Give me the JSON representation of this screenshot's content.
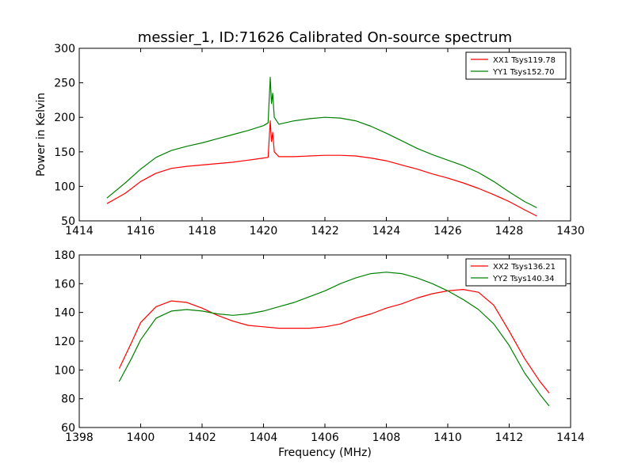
{
  "title": "messier_1, ID:71626 Calibrated On-source spectrum",
  "chart_data": [
    {
      "type": "line",
      "title": "messier_1, ID:71626 Calibrated On-source spectrum",
      "xlabel": "",
      "ylabel": "Power in Kelvin",
      "xlim": [
        1414,
        1430
      ],
      "ylim": [
        50,
        300
      ],
      "xticks": [
        "1414",
        "1416",
        "1418",
        "1420",
        "1422",
        "1424",
        "1426",
        "1428",
        "1430"
      ],
      "yticks": [
        "50",
        "100",
        "150",
        "200",
        "250",
        "300"
      ],
      "grid": false,
      "legend_position": "top-right",
      "series": [
        {
          "name": "XX1 Tsys119.78",
          "color": "#ff0000",
          "x": [
            1414.9,
            1415.5,
            1416,
            1416.5,
            1417,
            1417.5,
            1418,
            1418.5,
            1419,
            1419.5,
            1420,
            1420.15,
            1420.22,
            1420.26,
            1420.3,
            1420.35,
            1420.5,
            1421,
            1421.5,
            1422,
            1422.5,
            1423,
            1423.5,
            1424,
            1424.5,
            1425,
            1425.5,
            1426,
            1426.5,
            1427,
            1427.5,
            1428,
            1428.5,
            1428.9
          ],
          "y": [
            75,
            90,
            107,
            119,
            126,
            129,
            131,
            133,
            135,
            138,
            141,
            142,
            195,
            165,
            178,
            150,
            143,
            143,
            144,
            145,
            145,
            144,
            141,
            137,
            131,
            125,
            118,
            112,
            105,
            97,
            88,
            78,
            66,
            57
          ]
        },
        {
          "name": "YY1 Tsys152.70",
          "color": "#008000",
          "x": [
            1414.9,
            1415.5,
            1416,
            1416.5,
            1417,
            1417.5,
            1418,
            1418.5,
            1419,
            1419.5,
            1420,
            1420.15,
            1420.22,
            1420.26,
            1420.3,
            1420.35,
            1420.5,
            1421,
            1421.5,
            1422,
            1422.5,
            1423,
            1423.5,
            1424,
            1424.5,
            1425,
            1425.5,
            1426,
            1426.5,
            1427,
            1427.5,
            1428,
            1428.5,
            1428.9
          ],
          "y": [
            83,
            105,
            125,
            142,
            152,
            158,
            163,
            169,
            175,
            181,
            188,
            192,
            258,
            220,
            235,
            200,
            190,
            195,
            198,
            200,
            199,
            195,
            187,
            177,
            166,
            155,
            146,
            138,
            130,
            120,
            107,
            92,
            78,
            69
          ]
        }
      ]
    },
    {
      "type": "line",
      "title": "",
      "xlabel": "Frequency (MHz)",
      "ylabel": "",
      "xlim": [
        1398,
        1414
      ],
      "ylim": [
        60,
        180
      ],
      "xticks": [
        "1398",
        "1400",
        "1402",
        "1404",
        "1406",
        "1408",
        "1410",
        "1412",
        "1414"
      ],
      "yticks": [
        "60",
        "80",
        "100",
        "120",
        "140",
        "160",
        "180"
      ],
      "grid": false,
      "legend_position": "top-right",
      "series": [
        {
          "name": "XX2 Tsys136.21",
          "color": "#ff0000",
          "x": [
            1399.3,
            1399.7,
            1400,
            1400.5,
            1401,
            1401.5,
            1402,
            1402.5,
            1403,
            1403.5,
            1404,
            1404.5,
            1405,
            1405.5,
            1406,
            1406.5,
            1407,
            1407.5,
            1408,
            1408.5,
            1409,
            1409.5,
            1410,
            1410.5,
            1411,
            1411.5,
            1412,
            1412.5,
            1413,
            1413.3
          ],
          "y": [
            101,
            119,
            133,
            144,
            148,
            147,
            143,
            138,
            134,
            131,
            130,
            129,
            129,
            129,
            130,
            132,
            136,
            139,
            143,
            146,
            150,
            153,
            155,
            156,
            154,
            145,
            127,
            108,
            92,
            84
          ]
        },
        {
          "name": "YY2 Tsys140.34",
          "color": "#008000",
          "x": [
            1399.3,
            1399.7,
            1400,
            1400.5,
            1401,
            1401.5,
            1402,
            1402.5,
            1403,
            1403.5,
            1404,
            1404.5,
            1405,
            1405.5,
            1406,
            1406.5,
            1407,
            1407.5,
            1408,
            1408.5,
            1409,
            1409.5,
            1410,
            1410.5,
            1411,
            1411.5,
            1412,
            1412.5,
            1413,
            1413.3
          ],
          "y": [
            92,
            108,
            121,
            136,
            141,
            142,
            141,
            139,
            138,
            139,
            141,
            144,
            147,
            151,
            155,
            160,
            164,
            167,
            168,
            167,
            164,
            160,
            155,
            149,
            142,
            132,
            117,
            98,
            83,
            75
          ]
        }
      ]
    }
  ]
}
